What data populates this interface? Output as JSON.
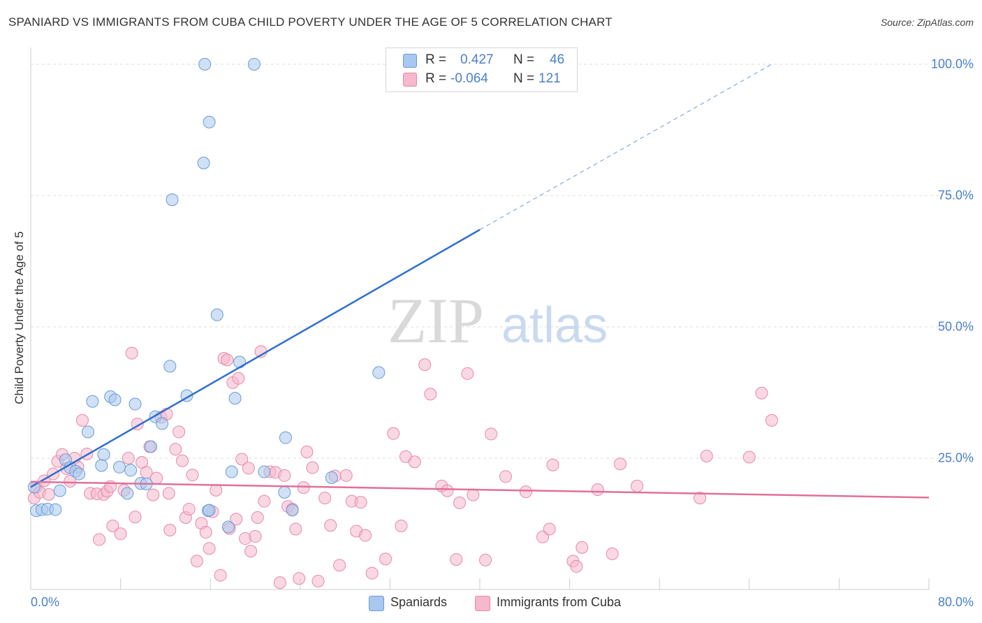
{
  "title": "SPANIARD VS IMMIGRANTS FROM CUBA CHILD POVERTY UNDER THE AGE OF 5 CORRELATION CHART",
  "source": "Source: ZipAtlas.com",
  "watermark": {
    "zip": "ZIP",
    "atlas": "atlas"
  },
  "colors": {
    "blue_fill": "#a9c8ef",
    "blue_stroke": "#6a9ad6",
    "blue_line": "#2f6fce",
    "pink_fill": "#f5b8cc",
    "pink_stroke": "#e58aa8",
    "pink_line": "#e0709a",
    "axis_text": "#4a7fcb",
    "grid": "#dddddd"
  },
  "legend": {
    "rows": [
      {
        "r_label": "R =",
        "r_value": "0.427",
        "n_label": "N =",
        "n_value": "46"
      },
      {
        "r_label": "R =",
        "r_value": "-0.064",
        "n_label": "N =",
        "n_value": "121"
      }
    ]
  },
  "bottom_legend": {
    "series1": "Spaniards",
    "series2": "Immigrants from Cuba"
  },
  "chart_data": {
    "type": "scatter",
    "title": "SPANIARD VS IMMIGRANTS FROM CUBA CHILD POVERTY UNDER THE AGE OF 5 CORRELATION CHART",
    "xlabel": "",
    "ylabel": "Child Poverty Under the Age of 5",
    "xlim": [
      0,
      80
    ],
    "ylim": [
      0,
      100
    ],
    "x_tick_labels": [
      "0.0%",
      "80.0%"
    ],
    "y_ticks": [
      25,
      50,
      75,
      100
    ],
    "y_tick_labels": [
      "25.0%",
      "50.0%",
      "75.0%",
      "100.0%"
    ],
    "grid": true,
    "legend_position": "top-center",
    "series": [
      {
        "name": "Spaniards",
        "color": "#a9c8ef",
        "points": [
          [
            0.3,
            19.5
          ],
          [
            0.5,
            15.0
          ],
          [
            1.0,
            15.2
          ],
          [
            1.5,
            15.3
          ],
          [
            2.2,
            15.2
          ],
          [
            2.6,
            18.8
          ],
          [
            3.1,
            24.7
          ],
          [
            3.5,
            23.2
          ],
          [
            4.0,
            22.5
          ],
          [
            4.3,
            22.0
          ],
          [
            5.1,
            30.0
          ],
          [
            5.5,
            35.8
          ],
          [
            6.3,
            23.6
          ],
          [
            6.5,
            25.7
          ],
          [
            7.1,
            36.7
          ],
          [
            7.5,
            36.1
          ],
          [
            7.9,
            23.3
          ],
          [
            8.6,
            18.3
          ],
          [
            8.9,
            22.7
          ],
          [
            9.3,
            35.3
          ],
          [
            9.8,
            20.2
          ],
          [
            10.3,
            20.1
          ],
          [
            10.7,
            27.2
          ],
          [
            11.1,
            32.9
          ],
          [
            11.7,
            31.6
          ],
          [
            12.4,
            42.5
          ],
          [
            12.6,
            74.2
          ],
          [
            13.9,
            36.9
          ],
          [
            15.8,
            15.0
          ],
          [
            15.4,
            81.2
          ],
          [
            15.5,
            100.0
          ],
          [
            15.9,
            89.0
          ],
          [
            15.9,
            15.1
          ],
          [
            16.6,
            52.3
          ],
          [
            17.6,
            11.9
          ],
          [
            17.9,
            22.4
          ],
          [
            18.2,
            36.4
          ],
          [
            18.6,
            43.3
          ],
          [
            19.9,
            100.0
          ],
          [
            20.8,
            22.4
          ],
          [
            22.6,
            18.5
          ],
          [
            22.7,
            28.9
          ],
          [
            23.3,
            15.1
          ],
          [
            26.8,
            21.3
          ],
          [
            31.0,
            41.3
          ],
          [
            37.2,
            100.0
          ]
        ],
        "trend": {
          "x": [
            0,
            40
          ],
          "y": [
            19.5,
            68.5
          ],
          "dashed_to": [
            66,
            100
          ]
        }
      },
      {
        "name": "Immigrants from Cuba",
        "color": "#f5b8cc",
        "points": [
          [
            0.3,
            17.4
          ],
          [
            0.5,
            19.5
          ],
          [
            0.8,
            18.5
          ],
          [
            1.2,
            20.7
          ],
          [
            1.6,
            18.1
          ],
          [
            2.0,
            22.0
          ],
          [
            2.4,
            24.4
          ],
          [
            2.8,
            25.7
          ],
          [
            3.2,
            23.0
          ],
          [
            3.5,
            20.6
          ],
          [
            3.9,
            25.0
          ],
          [
            4.2,
            23.3
          ],
          [
            4.6,
            32.2
          ],
          [
            5.0,
            25.8
          ],
          [
            5.3,
            18.3
          ],
          [
            5.9,
            18.2
          ],
          [
            6.1,
            9.5
          ],
          [
            6.5,
            18.1
          ],
          [
            6.8,
            18.7
          ],
          [
            7.1,
            19.6
          ],
          [
            7.3,
            12.1
          ],
          [
            8.0,
            10.6
          ],
          [
            8.3,
            18.9
          ],
          [
            8.7,
            25.0
          ],
          [
            9.0,
            45.0
          ],
          [
            9.3,
            13.8
          ],
          [
            9.5,
            31.5
          ],
          [
            9.9,
            24.2
          ],
          [
            10.3,
            22.3
          ],
          [
            10.6,
            27.2
          ],
          [
            10.9,
            18.0
          ],
          [
            11.2,
            21.2
          ],
          [
            11.6,
            32.8
          ],
          [
            12.1,
            33.4
          ],
          [
            12.3,
            18.3
          ],
          [
            12.4,
            11.3
          ],
          [
            12.9,
            26.7
          ],
          [
            13.2,
            30.0
          ],
          [
            13.5,
            24.5
          ],
          [
            13.8,
            13.7
          ],
          [
            14.1,
            15.3
          ],
          [
            14.4,
            21.8
          ],
          [
            14.8,
            5.4
          ],
          [
            15.2,
            12.6
          ],
          [
            15.6,
            10.9
          ],
          [
            15.9,
            7.8
          ],
          [
            16.2,
            14.8
          ],
          [
            16.5,
            18.9
          ],
          [
            16.9,
            2.7
          ],
          [
            17.2,
            44.0
          ],
          [
            17.5,
            43.7
          ],
          [
            17.7,
            11.6
          ],
          [
            18.0,
            39.4
          ],
          [
            18.3,
            13.4
          ],
          [
            18.5,
            40.2
          ],
          [
            18.8,
            24.8
          ],
          [
            19.1,
            9.7
          ],
          [
            19.4,
            23.1
          ],
          [
            19.6,
            7.3
          ],
          [
            20.0,
            10.1
          ],
          [
            20.2,
            13.7
          ],
          [
            20.5,
            45.3
          ],
          [
            20.8,
            16.8
          ],
          [
            21.3,
            22.4
          ],
          [
            21.8,
            22.3
          ],
          [
            22.2,
            1.3
          ],
          [
            22.6,
            21.7
          ],
          [
            22.9,
            15.8
          ],
          [
            23.3,
            15.3
          ],
          [
            23.6,
            11.5
          ],
          [
            23.9,
            2.1
          ],
          [
            24.3,
            19.4
          ],
          [
            24.6,
            26.2
          ],
          [
            25.1,
            23.2
          ],
          [
            25.6,
            1.6
          ],
          [
            26.2,
            17.4
          ],
          [
            26.7,
            12.2
          ],
          [
            27.1,
            21.6
          ],
          [
            27.5,
            4.6
          ],
          [
            28.1,
            21.7
          ],
          [
            28.6,
            16.8
          ],
          [
            29.0,
            11.1
          ],
          [
            29.4,
            16.6
          ],
          [
            29.8,
            10.3
          ],
          [
            30.4,
            3.1
          ],
          [
            31.6,
            5.8
          ],
          [
            32.3,
            29.7
          ],
          [
            33.0,
            12.1
          ],
          [
            33.4,
            25.3
          ],
          [
            34.2,
            24.3
          ],
          [
            35.1,
            42.8
          ],
          [
            35.6,
            37.2
          ],
          [
            36.6,
            19.7
          ],
          [
            37.1,
            18.8
          ],
          [
            37.9,
            5.7
          ],
          [
            38.2,
            16.5
          ],
          [
            38.9,
            41.1
          ],
          [
            39.4,
            18.0
          ],
          [
            40.5,
            5.6
          ],
          [
            41.0,
            29.6
          ],
          [
            42.3,
            21.5
          ],
          [
            44.1,
            18.6
          ],
          [
            45.6,
            10.0
          ],
          [
            46.2,
            11.5
          ],
          [
            46.5,
            23.7
          ],
          [
            48.3,
            5.4
          ],
          [
            48.6,
            4.4
          ],
          [
            49.1,
            8.0
          ],
          [
            50.5,
            19.0
          ],
          [
            51.8,
            6.8
          ],
          [
            52.5,
            23.9
          ],
          [
            54.0,
            19.7
          ],
          [
            59.6,
            17.4
          ],
          [
            60.2,
            25.4
          ],
          [
            64.0,
            25.2
          ],
          [
            65.1,
            37.4
          ],
          [
            66.0,
            32.2
          ]
        ],
        "trend": {
          "x": [
            0,
            80
          ],
          "y": [
            20.5,
            17.5
          ]
        }
      }
    ]
  }
}
